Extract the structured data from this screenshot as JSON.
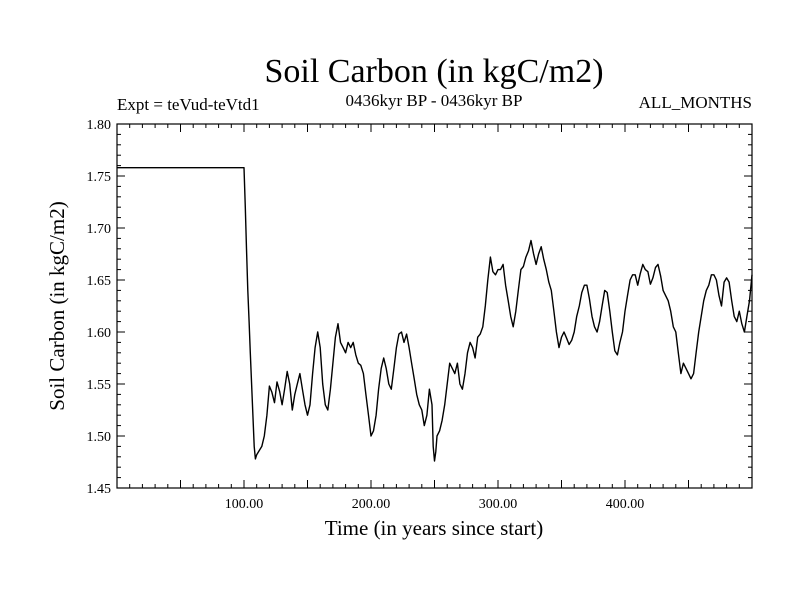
{
  "chart_data": {
    "type": "line",
    "title": "Soil Carbon (in kgC/m2)",
    "subtitle_left": "Expt = teVud-teVtd1",
    "subtitle_center": "0436kyr BP - 0436kyr BP",
    "subtitle_right": "ALL_MONTHS",
    "xlabel": "Time (in years since start)",
    "ylabel": "Soil Carbon (in kgC/m2)",
    "xlim": [
      0,
      500
    ],
    "ylim": [
      1.45,
      1.8
    ],
    "x_ticks": [
      100,
      200,
      300,
      400
    ],
    "x_tick_labels": [
      "100.00",
      "200.00",
      "300.00",
      "400.00"
    ],
    "y_ticks": [
      1.45,
      1.5,
      1.55,
      1.6,
      1.65,
      1.7,
      1.75,
      1.8
    ],
    "y_tick_labels": [
      "1.45",
      "1.50",
      "1.55",
      "1.60",
      "1.65",
      "1.70",
      "1.75",
      "1.80"
    ],
    "grid": false,
    "line_color": "#000000",
    "series": [
      {
        "name": "Soil Carbon",
        "x": [
          0,
          99,
          100,
          101,
          102,
          103,
          104,
          105,
          106,
          107,
          108,
          109,
          110,
          112,
          114,
          116,
          118,
          120,
          122,
          124,
          126,
          128,
          130,
          132,
          134,
          136,
          138,
          140,
          142,
          144,
          146,
          148,
          150,
          152,
          154,
          156,
          158,
          160,
          162,
          164,
          166,
          168,
          170,
          172,
          174,
          176,
          178,
          180,
          182,
          184,
          186,
          188,
          190,
          192,
          194,
          196,
          198,
          200,
          202,
          204,
          206,
          208,
          210,
          212,
          214,
          216,
          218,
          220,
          222,
          224,
          226,
          228,
          230,
          232,
          234,
          236,
          238,
          240,
          242,
          244,
          246,
          248,
          249,
          250,
          251,
          252,
          254,
          256,
          258,
          260,
          262,
          264,
          266,
          268,
          270,
          272,
          274,
          276,
          278,
          280,
          282,
          284,
          286,
          288,
          290,
          292,
          294,
          296,
          298,
          300,
          302,
          304,
          306,
          308,
          310,
          312,
          314,
          316,
          318,
          320,
          322,
          324,
          326,
          328,
          330,
          332,
          334,
          336,
          338,
          340,
          342,
          344,
          346,
          348,
          350,
          352,
          354,
          356,
          358,
          360,
          362,
          364,
          366,
          368,
          370,
          372,
          374,
          376,
          378,
          380,
          382,
          384,
          386,
          388,
          390,
          392,
          394,
          396,
          398,
          400,
          402,
          404,
          406,
          408,
          410,
          412,
          414,
          416,
          418,
          420,
          422,
          424,
          426,
          428,
          430,
          432,
          434,
          436,
          438,
          440,
          442,
          444,
          446,
          448,
          450,
          452,
          454,
          456,
          458,
          460,
          462,
          464,
          466,
          468,
          470,
          472,
          474,
          476,
          478,
          480,
          482,
          484,
          486,
          488,
          490,
          492,
          494,
          496,
          498,
          500
        ],
        "values": [
          1.758,
          1.758,
          1.758,
          1.72,
          1.68,
          1.64,
          1.61,
          1.58,
          1.55,
          1.52,
          1.49,
          1.478,
          1.482,
          1.486,
          1.49,
          1.5,
          1.52,
          1.548,
          1.542,
          1.532,
          1.552,
          1.543,
          1.53,
          1.545,
          1.562,
          1.55,
          1.525,
          1.54,
          1.55,
          1.56,
          1.545,
          1.53,
          1.52,
          1.53,
          1.56,
          1.585,
          1.6,
          1.585,
          1.55,
          1.53,
          1.525,
          1.545,
          1.57,
          1.595,
          1.608,
          1.59,
          1.585,
          1.58,
          1.59,
          1.585,
          1.59,
          1.578,
          1.57,
          1.568,
          1.56,
          1.54,
          1.52,
          1.5,
          1.505,
          1.52,
          1.545,
          1.565,
          1.575,
          1.565,
          1.55,
          1.545,
          1.565,
          1.585,
          1.598,
          1.6,
          1.59,
          1.598,
          1.585,
          1.57,
          1.555,
          1.54,
          1.53,
          1.525,
          1.51,
          1.52,
          1.545,
          1.53,
          1.49,
          1.476,
          1.485,
          1.5,
          1.505,
          1.515,
          1.53,
          1.55,
          1.57,
          1.565,
          1.56,
          1.57,
          1.55,
          1.545,
          1.56,
          1.58,
          1.59,
          1.585,
          1.575,
          1.595,
          1.598,
          1.605,
          1.625,
          1.65,
          1.672,
          1.658,
          1.655,
          1.66,
          1.66,
          1.665,
          1.645,
          1.63,
          1.615,
          1.605,
          1.62,
          1.64,
          1.66,
          1.663,
          1.672,
          1.678,
          1.688,
          1.675,
          1.665,
          1.675,
          1.682,
          1.67,
          1.66,
          1.648,
          1.64,
          1.62,
          1.6,
          1.585,
          1.595,
          1.6,
          1.594,
          1.588,
          1.592,
          1.6,
          1.615,
          1.625,
          1.638,
          1.645,
          1.645,
          1.632,
          1.615,
          1.605,
          1.6,
          1.61,
          1.625,
          1.64,
          1.638,
          1.62,
          1.6,
          1.582,
          1.578,
          1.59,
          1.6,
          1.62,
          1.635,
          1.65,
          1.655,
          1.655,
          1.645,
          1.656,
          1.665,
          1.66,
          1.658,
          1.646,
          1.652,
          1.662,
          1.665,
          1.654,
          1.64,
          1.635,
          1.63,
          1.62,
          1.605,
          1.6,
          1.58,
          1.56,
          1.57,
          1.565,
          1.56,
          1.555,
          1.56,
          1.58,
          1.6,
          1.615,
          1.63,
          1.64,
          1.645,
          1.655,
          1.655,
          1.65,
          1.635,
          1.625,
          1.648,
          1.652,
          1.648,
          1.63,
          1.615,
          1.61,
          1.62,
          1.608,
          1.6,
          1.615,
          1.63,
          1.655
        ]
      }
    ]
  }
}
